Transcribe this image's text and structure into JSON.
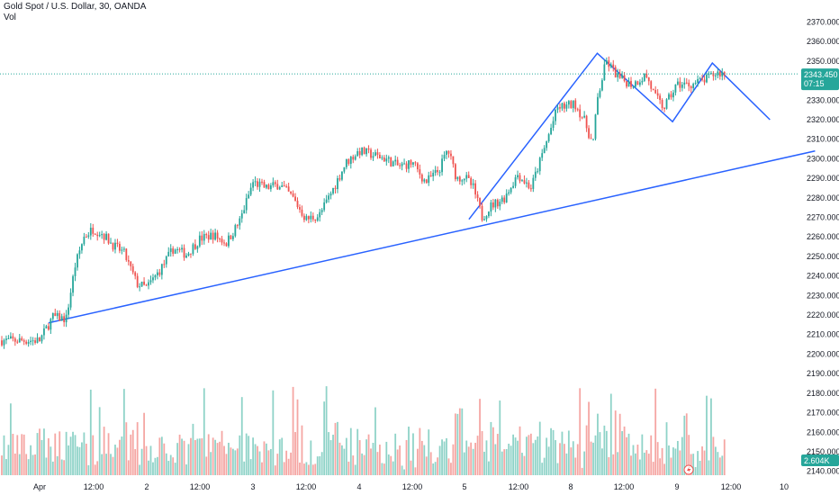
{
  "header": {
    "symbol_title": "Gold Spot / U.S. Dollar, 30, OANDA",
    "volume_label": "Vol"
  },
  "colors": {
    "up": "#26a69a",
    "down": "#ef5350",
    "vol_up": "#8fd3c8",
    "vol_down": "#f5a6a3",
    "trendline": "#2962ff",
    "last_price": "#26a69a",
    "volume_tag": "#26a69a",
    "alert_icon": "#ef5350"
  },
  "price_tag": {
    "price": "2343.450",
    "countdown": "07:15"
  },
  "volume_tag": {
    "value": "2.604K"
  },
  "icons": {
    "alert": "lightning-bolt-icon"
  },
  "chart_data": {
    "type": "candlestick",
    "title": "Gold Spot / U.S. Dollar, 30, OANDA",
    "interval": "30",
    "source": "OANDA",
    "y_axis": {
      "ticks": [
        "2370.000",
        "2360.000",
        "2350.000",
        "2340.000",
        "2330.000",
        "2320.000",
        "2310.000",
        "2300.000",
        "2290.000",
        "2280.000",
        "2270.000",
        "2260.000",
        "2250.000",
        "2240.000",
        "2230.000",
        "2220.000",
        "2210.000",
        "2200.000",
        "2190.000",
        "2180.000",
        "2170.000",
        "2160.000",
        "2150.000",
        "2140.000"
      ],
      "range": [
        2138,
        2373
      ],
      "position": "right"
    },
    "x_axis": {
      "ticks": [
        "Apr",
        "12:00",
        "2",
        "12:00",
        "3",
        "12:00",
        "4",
        "12:00",
        "5",
        "12:00",
        "8",
        "12:00",
        "9",
        "12:00",
        "10"
      ]
    },
    "last_price": 2343.45,
    "close_path": [
      [
        "Apr 1 00:00",
        2207
      ],
      [
        "Apr 1 03:00",
        2219
      ],
      [
        "Apr 1 06:00",
        2218
      ],
      [
        "Apr 1 08:00",
        2245
      ],
      [
        "Apr 1 10:00",
        2260
      ],
      [
        "Apr 1 12:00",
        2264
      ],
      [
        "Apr 1 14:00",
        2262
      ],
      [
        "Apr 1 17:00",
        2255
      ],
      [
        "Apr 1 19:00",
        2252
      ],
      [
        "Apr 1 22:00",
        2236
      ],
      [
        "Apr 2 00:00",
        2234
      ],
      [
        "Apr 2 03:00",
        2243
      ],
      [
        "Apr 2 06:00",
        2254
      ],
      [
        "Apr 2 09:00",
        2251
      ],
      [
        "Apr 2 12:00",
        2259
      ],
      [
        "Apr 2 15:00",
        2261
      ],
      [
        "Apr 2 18:00",
        2257
      ],
      [
        "Apr 2 21:00",
        2268
      ],
      [
        "Apr 3 00:00",
        2288
      ],
      [
        "Apr 3 03:00",
        2285
      ],
      [
        "Apr 3 06:00",
        2287
      ],
      [
        "Apr 3 09:00",
        2280
      ],
      [
        "Apr 3 12:00",
        2269
      ],
      [
        "Apr 3 15:00",
        2271
      ],
      [
        "Apr 3 18:00",
        2284
      ],
      [
        "Apr 3 21:00",
        2298
      ],
      [
        "Apr 4 00:00",
        2304
      ],
      [
        "Apr 4 03:00",
        2302
      ],
      [
        "Apr 4 06:00",
        2300
      ],
      [
        "Apr 4 09:00",
        2296
      ],
      [
        "Apr 4 12:00",
        2298
      ],
      [
        "Apr 4 15:00",
        2288
      ],
      [
        "Apr 4 18:00",
        2294
      ],
      [
        "Apr 4 20:00",
        2305
      ],
      [
        "Apr 4 22:00",
        2290
      ],
      [
        "Apr 5 00:00",
        2291
      ],
      [
        "Apr 5 02:00",
        2285
      ],
      [
        "Apr 5 04:00",
        2270
      ],
      [
        "Apr 5 06:00",
        2276
      ],
      [
        "Apr 5 09:00",
        2280
      ],
      [
        "Apr 5 12:00",
        2292
      ],
      [
        "Apr 5 15:00",
        2285
      ],
      [
        "Apr 5 18:00",
        2305
      ],
      [
        "Apr 5 21:00",
        2326
      ],
      [
        "Apr 8 01:00",
        2328
      ],
      [
        "Apr 8 03:00",
        2320
      ],
      [
        "Apr 8 05:00",
        2307
      ],
      [
        "Apr 8 06:00",
        2330
      ],
      [
        "Apr 8 08:00",
        2350
      ],
      [
        "Apr 8 11:00",
        2341
      ],
      [
        "Apr 8 14:00",
        2338
      ],
      [
        "Apr 8 17:00",
        2343
      ],
      [
        "Apr 8 19:00",
        2332
      ],
      [
        "Apr 8 21:00",
        2326
      ],
      [
        "Apr 9 00:00",
        2338
      ],
      [
        "Apr 9 03:00",
        2338
      ],
      [
        "Apr 9 06:00",
        2340
      ],
      [
        "Apr 9 09:00",
        2344
      ],
      [
        "Apr 9 11:00",
        2343.45
      ]
    ],
    "volume_axis": {
      "ticks": []
    },
    "drawings": [
      {
        "kind": "support-trendline",
        "from": [
          "Apr 1 02:00",
          2216
        ],
        "to": [
          "Apr 10 07:00",
          2304
        ]
      },
      {
        "kind": "zigzag",
        "points": [
          [
            "Apr 5 01:00",
            2269
          ],
          [
            "Apr 8 06:00",
            2354
          ],
          [
            "Apr 8 23:00",
            2319
          ],
          [
            "Apr 9 08:00",
            2349
          ],
          [
            "Apr 9 21:00",
            2320
          ]
        ]
      }
    ]
  }
}
